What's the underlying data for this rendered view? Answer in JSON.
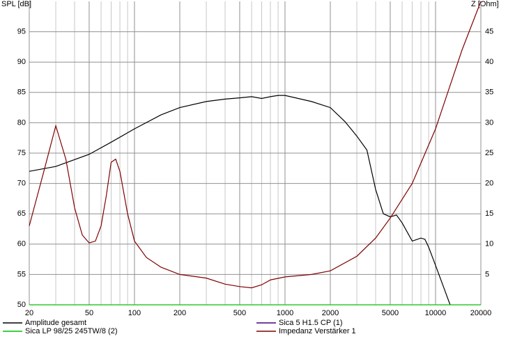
{
  "chart_data": {
    "type": "line",
    "log_x": true,
    "grid": true,
    "ylabel": "SPL [dB]",
    "y2label": "Z [Ohm]",
    "xlim": [
      20,
      20000
    ],
    "xticks": [
      20,
      50,
      100,
      200,
      500,
      1000,
      2000,
      5000,
      10000,
      20000
    ],
    "xminorticks": [
      30,
      40,
      60,
      70,
      80,
      90,
      300,
      400,
      600,
      700,
      800,
      900,
      3000,
      4000,
      6000,
      7000,
      8000,
      9000
    ],
    "ylim": [
      50,
      100
    ],
    "yticks": [
      50,
      55,
      60,
      65,
      70,
      75,
      80,
      85,
      90,
      95
    ],
    "y2lim": [
      0,
      50
    ],
    "y2ticks": [
      5,
      10,
      15,
      20,
      25,
      30,
      35,
      40,
      45
    ],
    "series": [
      {
        "name": "Amplitude gesamt",
        "color": "#000000",
        "x": [
          20,
          30,
          50,
          70,
          100,
          150,
          200,
          300,
          400,
          500,
          600,
          700,
          800,
          900,
          1000,
          1500,
          2000,
          2500,
          3000,
          3500,
          4000,
          4500,
          5000,
          5500,
          6000,
          7000,
          8000,
          8500,
          9000,
          10000,
          12500
        ],
        "values": [
          72.0,
          72.8,
          74.8,
          76.8,
          79.0,
          81.3,
          82.5,
          83.5,
          83.9,
          84.1,
          84.3,
          84.0,
          84.3,
          84.5,
          84.5,
          83.5,
          82.5,
          80.2,
          77.8,
          75.5,
          69.0,
          65.0,
          64.5,
          64.8,
          63.5,
          60.5,
          61.0,
          60.8,
          59.5,
          56.5,
          50.0
        ]
      },
      {
        "name": "Sica 5 H1.5 CP (1)",
        "color": "#400080",
        "x": [
          20,
          20000
        ],
        "values": [
          null,
          null
        ]
      },
      {
        "name": "Sica LP 98/25 245TW/8 (2)",
        "color": "#00c000",
        "x": [
          20,
          20000
        ],
        "values": [
          50,
          50
        ]
      },
      {
        "name": "Impedanz Verstärker 1",
        "color": "#800000",
        "axis": "y2",
        "x": [
          20,
          25,
          30,
          35,
          40,
          45,
          50,
          55,
          60,
          65,
          70,
          75,
          80,
          90,
          100,
          120,
          150,
          200,
          300,
          400,
          500,
          600,
          700,
          800,
          1000,
          1500,
          2000,
          3000,
          4000,
          5000,
          7000,
          10000,
          15000,
          20000
        ],
        "values": [
          13,
          22,
          29.5,
          24,
          16,
          11.5,
          10.2,
          10.5,
          13,
          18,
          23.5,
          24,
          22,
          15,
          10.5,
          7.8,
          6.2,
          5.0,
          4.4,
          3.4,
          3.0,
          2.8,
          3.3,
          4.1,
          4.6,
          5.0,
          5.6,
          8,
          11,
          14.3,
          20,
          29,
          42,
          50
        ]
      }
    ]
  }
}
